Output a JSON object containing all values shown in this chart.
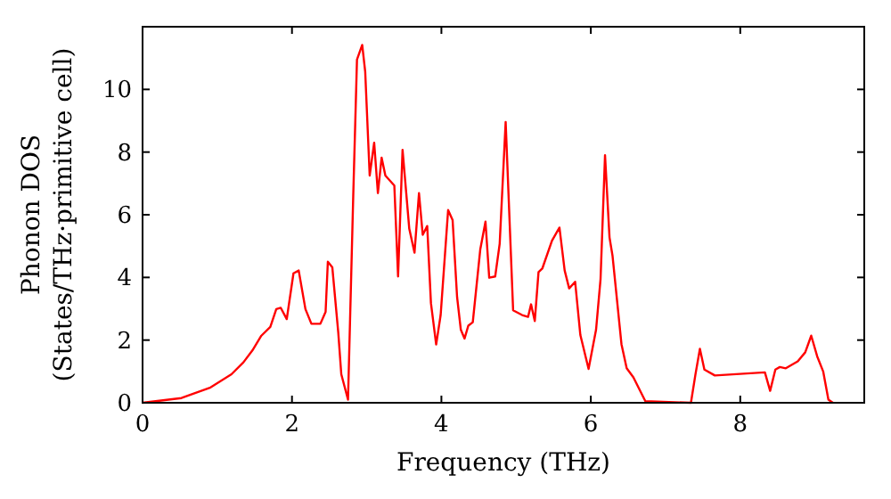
{
  "chart_data": {
    "type": "line",
    "xlabel": "Frequency (THz)",
    "ylabel": "Phonon DOS\n(States/THz·primitive cell)",
    "xlim": [
      0,
      9.66
    ],
    "ylim": [
      0,
      12
    ],
    "xticks": [
      0,
      2,
      4,
      6,
      8
    ],
    "yticks": [
      0,
      2,
      4,
      6,
      8,
      10
    ],
    "grid": false,
    "marker": "none",
    "line_style": "solid",
    "series": [
      {
        "color": "#ff0000",
        "x": [
          0,
          0.52,
          0.91,
          1.19,
          1.35,
          1.47,
          1.59,
          1.71,
          1.79,
          1.85,
          1.93,
          2.02,
          2.09,
          2.18,
          2.26,
          2.38,
          2.45,
          2.48,
          2.54,
          2.62,
          2.66,
          2.75,
          2.82,
          2.87,
          2.94,
          2.98,
          3.04,
          3.1,
          3.15,
          3.2,
          3.25,
          3.37,
          3.42,
          3.48,
          3.57,
          3.64,
          3.7,
          3.75,
          3.81,
          3.86,
          3.93,
          3.99,
          4.09,
          4.15,
          4.21,
          4.26,
          4.31,
          4.36,
          4.42,
          4.52,
          4.59,
          4.64,
          4.72,
          4.78,
          4.86,
          4.96,
          5.08,
          5.16,
          5.2,
          5.25,
          5.3,
          5.35,
          5.48,
          5.58,
          5.65,
          5.71,
          5.79,
          5.86,
          5.97,
          6.07,
          6.13,
          6.19,
          6.25,
          6.29,
          6.41,
          6.48,
          6.57,
          6.73,
          7.34,
          7.4,
          7.46,
          7.52,
          7.66,
          8.33,
          8.4,
          8.47,
          8.53,
          8.61,
          8.77,
          8.87,
          8.95,
          9.03,
          9.11,
          9.18,
          9.24
        ],
        "values": [
          0,
          0.15,
          0.49,
          0.91,
          1.29,
          1.67,
          2.14,
          2.42,
          2.99,
          3.03,
          2.67,
          4.13,
          4.22,
          2.99,
          2.52,
          2.52,
          2.9,
          4.5,
          4.32,
          2.23,
          0.91,
          0.1,
          6.6,
          10.95,
          11.42,
          10.57,
          7.25,
          8.3,
          6.69,
          7.82,
          7.25,
          6.93,
          4.03,
          8.07,
          5.55,
          4.79,
          6.69,
          5.36,
          5.64,
          3.18,
          1.86,
          2.8,
          6.15,
          5.83,
          3.37,
          2.33,
          2.05,
          2.46,
          2.57,
          4.89,
          5.78,
          3.99,
          4.03,
          5.07,
          8.96,
          2.95,
          2.8,
          2.74,
          3.14,
          2.61,
          4.17,
          4.28,
          5.17,
          5.59,
          4.22,
          3.65,
          3.86,
          2.16,
          1.08,
          2.33,
          3.94,
          7.9,
          5.28,
          4.7,
          1.87,
          1.1,
          0.81,
          0.05,
          0,
          0.9,
          1.72,
          1.06,
          0.87,
          0.97,
          0.38,
          1.06,
          1.14,
          1.1,
          1.32,
          1.61,
          2.14,
          1.48,
          1,
          0.1,
          0
        ]
      }
    ]
  }
}
